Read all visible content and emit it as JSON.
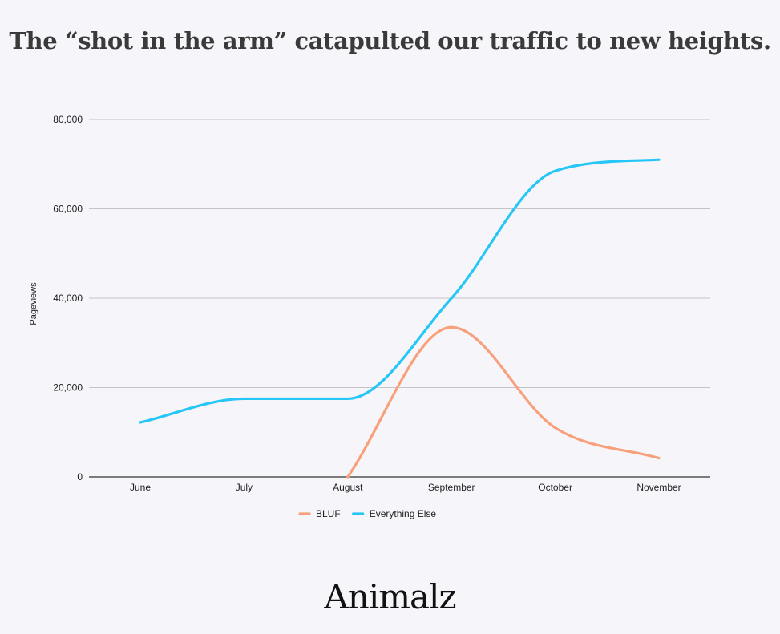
{
  "page": {
    "title": "The “shot in the arm” catapulted our traffic to new heights.",
    "logo": "Animalz"
  },
  "colors": {
    "background": "#f6f5f9",
    "bluf": "#f8a07c",
    "everything_else": "#26c6f7",
    "grid": "#c4c4c8",
    "axis": "#333333"
  },
  "chart_data": {
    "type": "line",
    "title": "The “shot in the arm” catapulted our traffic to new heights.",
    "xlabel": "",
    "ylabel": "Pageviews",
    "categories": [
      "June",
      "July",
      "August",
      "September",
      "October",
      "November"
    ],
    "ylim": [
      0,
      80000
    ],
    "yticks": [
      0,
      20000,
      40000,
      60000,
      80000
    ],
    "ytick_labels": [
      "0",
      "20,000",
      "40,000",
      "60,000",
      "80,000"
    ],
    "grid": true,
    "smooth": true,
    "legend_position": "bottom",
    "series": [
      {
        "name": "BLUF",
        "color": "#f8a07c",
        "values": [
          null,
          null,
          0,
          33500,
          11000,
          4200
        ]
      },
      {
        "name": "Everything Else",
        "color": "#26c6f7",
        "values": [
          12200,
          17500,
          17500,
          40000,
          68500,
          71000
        ]
      }
    ]
  }
}
